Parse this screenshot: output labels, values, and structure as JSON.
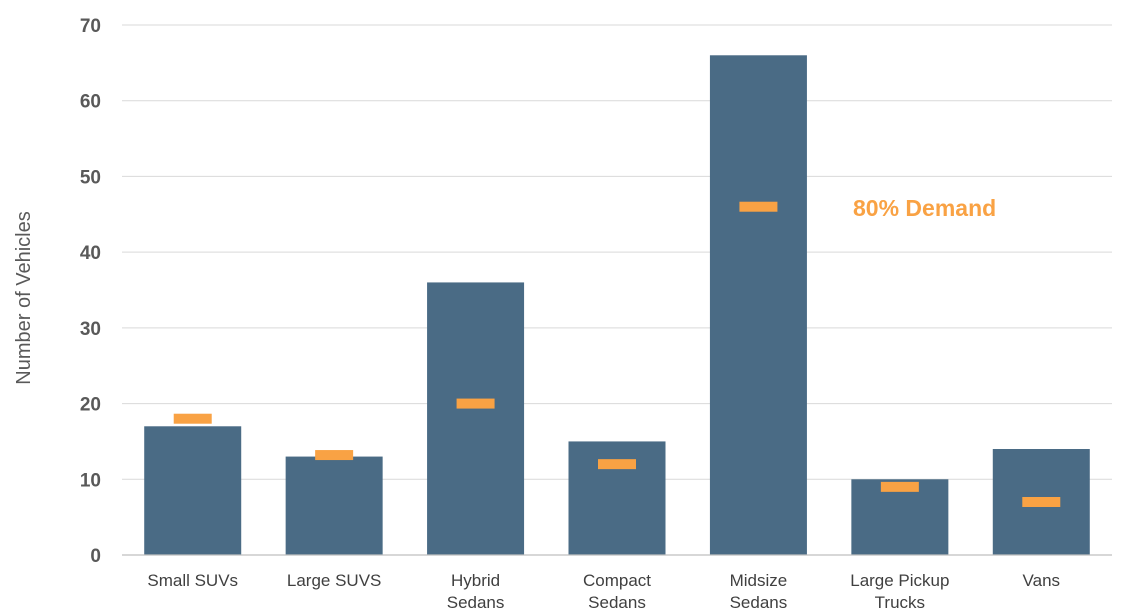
{
  "chart_data": {
    "type": "bar",
    "categories": [
      [
        "Small SUVs"
      ],
      [
        "Large SUVS"
      ],
      [
        "Hybrid",
        "Sedans"
      ],
      [
        "Compact",
        "Sedans"
      ],
      [
        "Midsize",
        "Sedans"
      ],
      [
        "Large Pickup",
        "Trucks"
      ],
      [
        "Vans"
      ]
    ],
    "series": [
      {
        "values": [
          17,
          13,
          36,
          15,
          66,
          10,
          14
        ],
        "color": "#4a6b85"
      },
      {
        "name": "80% Demand",
        "type": "marker",
        "values": [
          18,
          13.2,
          20,
          12,
          46,
          9,
          7
        ],
        "color": "#f9a244"
      }
    ],
    "ylabel": "Number of Vehicles",
    "ylim": [
      0,
      70
    ],
    "yticks": [
      0,
      10,
      20,
      30,
      40,
      50,
      60,
      70
    ],
    "grid": true,
    "annotation": "80% Demand"
  }
}
